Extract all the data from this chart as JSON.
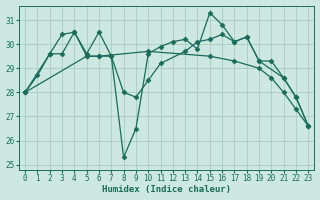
{
  "xlabel": "Humidex (Indice chaleur)",
  "bg_color": "#cce8e0",
  "line_color": "#1a6b5a",
  "grid_color": "#aaccbf",
  "xlim": [
    -0.5,
    23.5
  ],
  "ylim": [
    24.8,
    31.6
  ],
  "xticks": [
    0,
    1,
    2,
    3,
    4,
    5,
    6,
    7,
    8,
    9,
    10,
    11,
    12,
    13,
    14,
    15,
    16,
    17,
    18,
    19,
    20,
    21,
    22,
    23
  ],
  "yticks": [
    25,
    26,
    27,
    28,
    29,
    30,
    31
  ],
  "series": [
    {
      "x": [
        0,
        1,
        2,
        3,
        4,
        5,
        6,
        7,
        8,
        9,
        10,
        11,
        12,
        13,
        14,
        15,
        16,
        17,
        18,
        19,
        20,
        21,
        22,
        23
      ],
      "y": [
        28.0,
        28.7,
        29.6,
        30.4,
        30.5,
        29.6,
        30.5,
        29.5,
        25.3,
        26.5,
        29.6,
        29.9,
        30.1,
        30.2,
        29.8,
        31.3,
        30.8,
        30.1,
        30.3,
        29.3,
        29.3,
        28.6,
        27.8,
        26.6
      ]
    },
    {
      "x": [
        0,
        2,
        3,
        4,
        5,
        6,
        7,
        8,
        9,
        10,
        11,
        13,
        14,
        15,
        16,
        17,
        18,
        19,
        21,
        22,
        23
      ],
      "y": [
        28.0,
        29.6,
        29.6,
        30.5,
        29.5,
        29.5,
        29.5,
        28.0,
        27.8,
        28.5,
        29.2,
        29.7,
        30.1,
        30.2,
        30.4,
        30.1,
        30.3,
        29.3,
        28.6,
        27.8,
        26.6
      ]
    },
    {
      "x": [
        0,
        5,
        6,
        10,
        15,
        17,
        19,
        20,
        21,
        22,
        23
      ],
      "y": [
        28.0,
        29.5,
        29.5,
        29.7,
        29.5,
        29.3,
        29.0,
        28.6,
        28.0,
        27.3,
        26.6
      ]
    }
  ]
}
